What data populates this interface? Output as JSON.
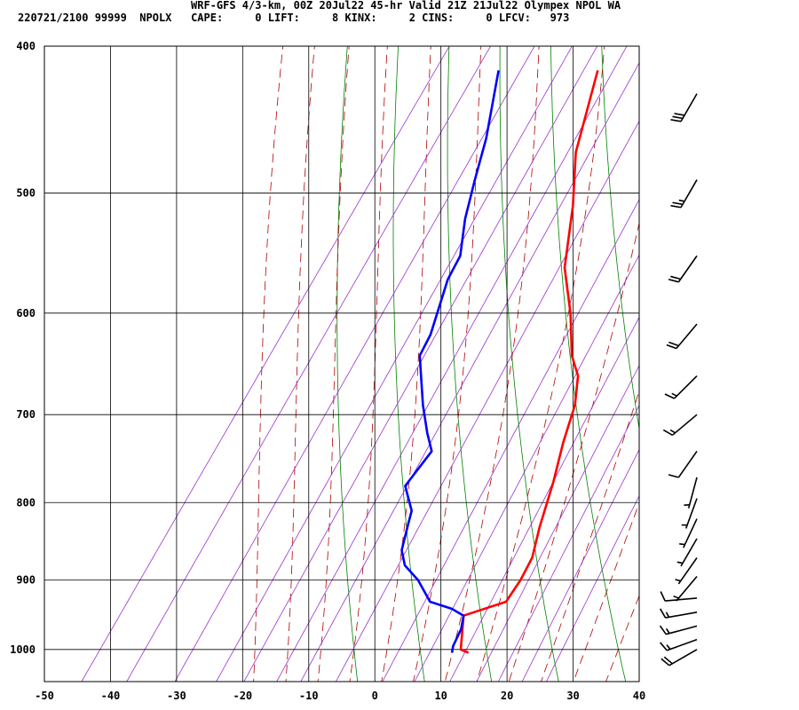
{
  "header": {
    "title": "WRF-GFS 4/3-km, 00Z 20Jul22 45-hr Valid 21Z 21Jul22 Olympex NPOL WA",
    "info": "220721/2100 99999  NPOLX   CAPE:     0 LIFT:     8 KINX:     2 CINS:     0 LFCV:   973"
  },
  "colors": {
    "temperature": "#ff0000",
    "dewpoint": "#0000ff",
    "dry_adiabat": "#008000",
    "moist_adiabat": "#b00000",
    "mixing_ratio": "#9933cc",
    "grid": "#000000"
  },
  "chart_data": {
    "type": "line",
    "subtype": "skew-t log-p sounding",
    "x_ticks": [
      "-50",
      "-40",
      "-30",
      "-20",
      "-10",
      "0",
      "10",
      "20",
      "30",
      "40"
    ],
    "xlim": [
      -50,
      40
    ],
    "y_ticks": [
      "400",
      "500",
      "600",
      "700",
      "800",
      "900",
      "1000"
    ],
    "ylim": [
      1050,
      400
    ],
    "y_scale": "log",
    "grid": true,
    "series": [
      {
        "key": "temperature",
        "x": [
          14.5,
          13.0,
          10.0,
          15.0,
          15.0,
          14.5,
          12.5,
          10.0,
          7.5,
          5.5,
          3.0,
          0.0,
          -4.5,
          -10.0,
          -15.0,
          -20.0,
          -25.0
        ],
        "y": [
          1005,
          1000,
          950,
          930,
          900,
          870,
          830,
          775,
          730,
          690,
          660,
          640,
          600,
          560,
          510,
          470,
          415
        ]
      },
      {
        "key": "dewpoint",
        "x": [
          12.0,
          11.5,
          11.0,
          10.0,
          7.5,
          3.5,
          -0.5,
          -4.0,
          -6.0,
          -7.5,
          -8.5,
          -12.0,
          -11.5,
          -14.0,
          -17.5,
          -23.0,
          -23.5,
          -26.5,
          -27.0,
          -30.0,
          -32.5,
          -35.0,
          -40.0
        ],
        "y": [
          1005,
          995,
          970,
          950,
          940,
          930,
          900,
          880,
          860,
          830,
          810,
          780,
          740,
          720,
          690,
          640,
          620,
          570,
          550,
          520,
          490,
          460,
          415
        ]
      }
    ],
    "dry_adiabats_theta_k": [
      270,
      280,
      290,
      300,
      310,
      320,
      330,
      340,
      350,
      360,
      370,
      380,
      390
    ],
    "moist_adiabats_theta_w_k": [
      255,
      260,
      265,
      270,
      275,
      280,
      285,
      290,
      295,
      300,
      305,
      310
    ],
    "mixing_ratios_gkg": [
      0.1,
      0.2,
      0.4,
      0.7,
      1,
      1.5,
      2,
      3,
      5,
      7,
      10,
      13,
      16,
      20,
      25
    ],
    "wind_barbs": [
      {
        "p": 1000,
        "speed_kt": 20,
        "dir": 240
      },
      {
        "p": 985,
        "speed_kt": 15,
        "dir": 250
      },
      {
        "p": 965,
        "speed_kt": 15,
        "dir": 255
      },
      {
        "p": 945,
        "speed_kt": 15,
        "dir": 260
      },
      {
        "p": 925,
        "speed_kt": 10,
        "dir": 265
      },
      {
        "p": 895,
        "speed_kt": 5,
        "dir": 220
      },
      {
        "p": 870,
        "speed_kt": 5,
        "dir": 215
      },
      {
        "p": 845,
        "speed_kt": 5,
        "dir": 210
      },
      {
        "p": 820,
        "speed_kt": 5,
        "dir": 205
      },
      {
        "p": 795,
        "speed_kt": 5,
        "dir": 200
      },
      {
        "p": 770,
        "speed_kt": 5,
        "dir": 195
      },
      {
        "p": 740,
        "speed_kt": 10,
        "dir": 215
      },
      {
        "p": 700,
        "speed_kt": 15,
        "dir": 230
      },
      {
        "p": 660,
        "speed_kt": 15,
        "dir": 225
      },
      {
        "p": 610,
        "speed_kt": 20,
        "dir": 220
      },
      {
        "p": 550,
        "speed_kt": 20,
        "dir": 215
      },
      {
        "p": 490,
        "speed_kt": 25,
        "dir": 210
      },
      {
        "p": 430,
        "speed_kt": 30,
        "dir": 210
      }
    ]
  }
}
